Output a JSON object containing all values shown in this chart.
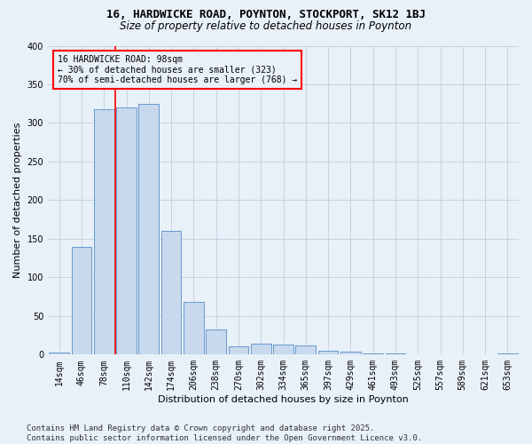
{
  "title1": "16, HARDWICKE ROAD, POYNTON, STOCKPORT, SK12 1BJ",
  "title2": "Size of property relative to detached houses in Poynton",
  "xlabel": "Distribution of detached houses by size in Poynton",
  "ylabel": "Number of detached properties",
  "categories": [
    "14sqm",
    "46sqm",
    "78sqm",
    "110sqm",
    "142sqm",
    "174sqm",
    "206sqm",
    "238sqm",
    "270sqm",
    "302sqm",
    "334sqm",
    "365sqm",
    "397sqm",
    "429sqm",
    "461sqm",
    "493sqm",
    "525sqm",
    "557sqm",
    "589sqm",
    "621sqm",
    "653sqm"
  ],
  "values": [
    3,
    140,
    318,
    320,
    325,
    160,
    68,
    33,
    11,
    14,
    13,
    12,
    5,
    4,
    1,
    1,
    0,
    0,
    0,
    0,
    1
  ],
  "bar_color": "#c8d9ee",
  "bar_edge_color": "#6699cc",
  "grid_color": "#c0d0e0",
  "background_color": "#e8f0f8",
  "annotation_line1": "16 HARDWICKE ROAD: 98sqm",
  "annotation_line2": "← 30% of detached houses are smaller (323)",
  "annotation_line3": "70% of semi-detached houses are larger (768) →",
  "footer_line1": "Contains HM Land Registry data © Crown copyright and database right 2025.",
  "footer_line2": "Contains public sector information licensed under the Open Government Licence v3.0.",
  "ylim": [
    0,
    400
  ],
  "yticks": [
    0,
    50,
    100,
    150,
    200,
    250,
    300,
    350,
    400
  ],
  "vline_x": 2.5,
  "title1_fontsize": 9,
  "title2_fontsize": 8.5,
  "axis_label_fontsize": 8,
  "tick_fontsize": 7,
  "annotation_fontsize": 7,
  "footer_fontsize": 6.5
}
